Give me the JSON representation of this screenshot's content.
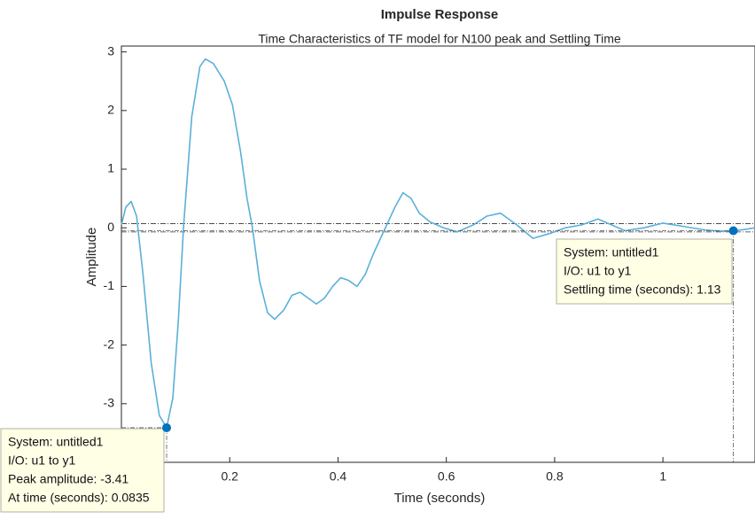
{
  "chart_data": {
    "type": "line",
    "title": "Impulse Response",
    "subtitle": "Time Characteristics of TF model for N100 peak and Settling Time",
    "xlabel": "Time (seconds)",
    "ylabel": "Amplitude",
    "xlim": [
      0,
      1.17
    ],
    "ylim": [
      -4,
      3.1
    ],
    "xticks": [
      0.2,
      0.4,
      0.6,
      0.8,
      1
    ],
    "yticks": [
      -3,
      -2,
      -1,
      0,
      1,
      2,
      3
    ],
    "grid": false,
    "series": [
      {
        "name": "untitled1",
        "color": "#5ab0da",
        "x": [
          0,
          0.008,
          0.018,
          0.028,
          0.04,
          0.055,
          0.07,
          0.0835,
          0.095,
          0.105,
          0.115,
          0.13,
          0.145,
          0.155,
          0.17,
          0.19,
          0.205,
          0.22,
          0.232,
          0.242,
          0.255,
          0.27,
          0.283,
          0.3,
          0.315,
          0.33,
          0.345,
          0.36,
          0.375,
          0.39,
          0.405,
          0.42,
          0.435,
          0.45,
          0.465,
          0.48,
          0.49,
          0.505,
          0.52,
          0.535,
          0.55,
          0.57,
          0.595,
          0.62,
          0.65,
          0.675,
          0.7,
          0.73,
          0.76,
          0.79,
          0.82,
          0.85,
          0.88,
          0.905,
          0.93,
          0.965,
          1.0,
          1.04,
          1.08,
          1.11,
          1.13,
          1.15,
          1.17
        ],
        "values": [
          0.05,
          0.35,
          0.45,
          0.2,
          -0.8,
          -2.3,
          -3.2,
          -3.41,
          -2.9,
          -1.6,
          0.05,
          1.9,
          2.75,
          2.88,
          2.8,
          2.5,
          2.1,
          1.3,
          0.5,
          0.0,
          -0.9,
          -1.45,
          -1.56,
          -1.4,
          -1.15,
          -1.1,
          -1.2,
          -1.3,
          -1.2,
          -1.0,
          -0.85,
          -0.9,
          -1.0,
          -0.8,
          -0.45,
          -0.15,
          0.05,
          0.35,
          0.6,
          0.5,
          0.25,
          0.1,
          0.0,
          -0.07,
          0.05,
          0.2,
          0.25,
          0.05,
          -0.18,
          -0.1,
          0.0,
          0.05,
          0.15,
          0.05,
          -0.05,
          0.0,
          0.08,
          0.02,
          -0.04,
          -0.06,
          -0.05,
          -0.03,
          0.0
        ]
      }
    ],
    "settling_bounds": [
      0.07,
      -0.07
    ],
    "peak": {
      "x": 0.0835,
      "y": -3.41,
      "tip": [
        "System: untitled1",
        "I/O: u1 to y1",
        "Peak amplitude: -3.41",
        "At time (seconds): 0.0835"
      ]
    },
    "settling": {
      "x": 1.13,
      "y": -0.05,
      "tip": [
        "System: untitled1",
        "I/O: u1 to y1",
        "Settling time (seconds): 1.13"
      ]
    }
  }
}
